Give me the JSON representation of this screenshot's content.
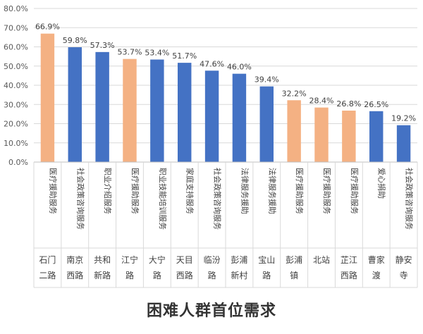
{
  "chart_data": {
    "type": "bar",
    "title": "困难人群首位需求",
    "ylim": [
      0,
      80
    ],
    "yticks": [
      "0.0%",
      "10.0%",
      "20.0%",
      "30.0%",
      "40.0%",
      "50.0%",
      "60.0%",
      "70.0%",
      "80.0%"
    ],
    "categories": [
      {
        "district": [
          "石门",
          "二路"
        ],
        "service": "医疗援助服务",
        "value": 66.9,
        "label": "66.9%",
        "color": "#F4B183"
      },
      {
        "district": [
          "南京",
          "西路"
        ],
        "service": "社会政策咨询服务",
        "value": 59.8,
        "label": "59.8%",
        "color": "#4472C4"
      },
      {
        "district": [
          "共和",
          "新路"
        ],
        "service": "职业介绍服务",
        "value": 57.3,
        "label": "57.3%",
        "color": "#4472C4"
      },
      {
        "district": [
          "江宁",
          "路"
        ],
        "service": "医疗援助服务",
        "value": 53.7,
        "label": "53.7%",
        "color": "#F4B183"
      },
      {
        "district": [
          "大宁",
          "路"
        ],
        "service": "职业技能培训服务",
        "value": 53.4,
        "label": "53.4%",
        "color": "#4472C4"
      },
      {
        "district": [
          "天目",
          "西路"
        ],
        "service": "家庭支持服务",
        "value": 51.7,
        "label": "51.7%",
        "color": "#4472C4"
      },
      {
        "district": [
          "临汾",
          "路"
        ],
        "service": "社会政策咨询服务",
        "value": 47.6,
        "label": "47.6%",
        "color": "#4472C4"
      },
      {
        "district": [
          "彭浦",
          "新村"
        ],
        "service": "法律服务援助",
        "value": 46.0,
        "label": "46.0%",
        "color": "#4472C4"
      },
      {
        "district": [
          "宝山",
          "路"
        ],
        "service": "法律服务援助",
        "value": 39.4,
        "label": "39.4%",
        "color": "#4472C4"
      },
      {
        "district": [
          "彭浦",
          "镇"
        ],
        "service": "医疗援助服务",
        "value": 32.2,
        "label": "32.2%",
        "color": "#F4B183"
      },
      {
        "district": [
          "北站"
        ],
        "service": "医疗援助服务",
        "value": 28.4,
        "label": "28.4%",
        "color": "#F4B183"
      },
      {
        "district": [
          "芷江",
          "西路"
        ],
        "service": "医疗援助服务",
        "value": 26.8,
        "label": "26.8%",
        "color": "#F4B183"
      },
      {
        "district": [
          "曹家",
          "渡"
        ],
        "service": "爱心捐助",
        "value": 26.5,
        "label": "26.5%",
        "color": "#4472C4"
      },
      {
        "district": [
          "静安",
          "寺"
        ],
        "service": "社会政策咨询服务",
        "value": 19.2,
        "label": "19.2%",
        "color": "#4472C4"
      }
    ],
    "grid": true,
    "gridColor": "#D9D9D9",
    "axisColor": "#BFBFBF"
  }
}
